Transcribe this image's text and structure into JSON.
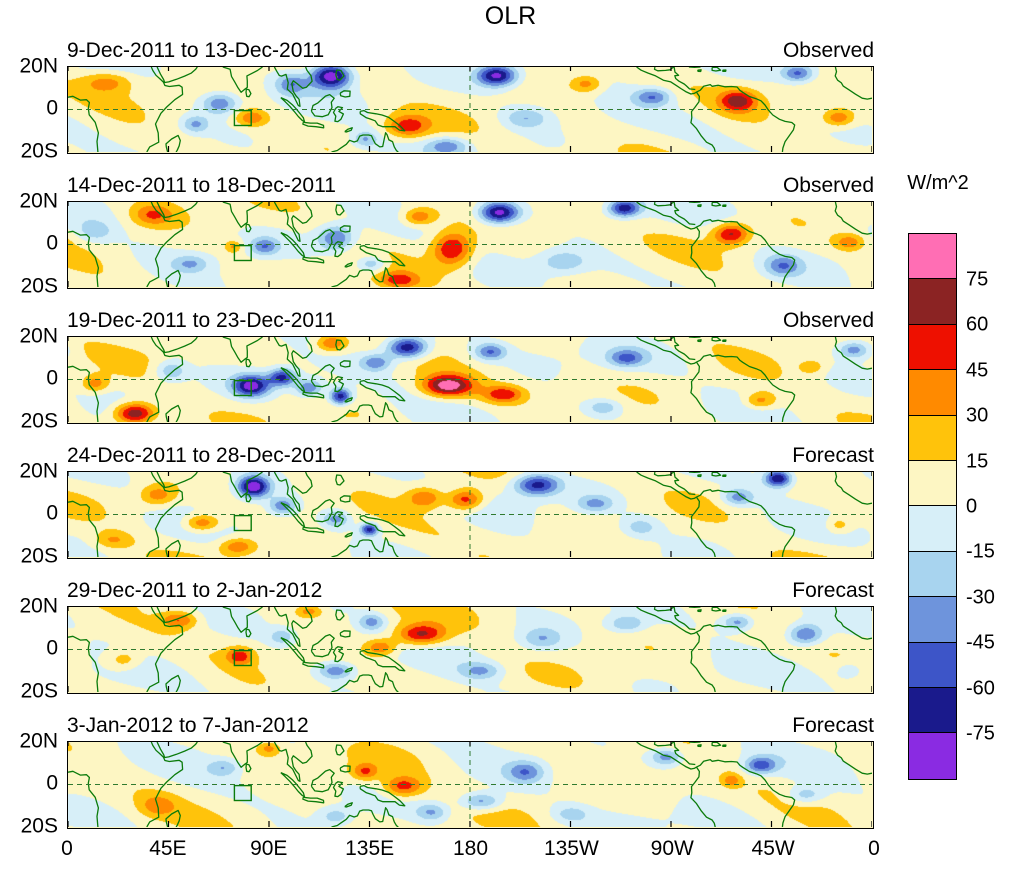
{
  "chart_data": {
    "type": "heatmap",
    "title": "OLR",
    "units": "W/m^2",
    "x_ticks": [
      "0",
      "45E",
      "90E",
      "135E",
      "180",
      "135W",
      "90W",
      "45W",
      "0"
    ],
    "y_ticks": [
      "20N",
      "0",
      "20S"
    ],
    "lon_range": [
      0,
      360
    ],
    "lat_range": [
      -20,
      20
    ],
    "levels": [
      -75,
      -60,
      -45,
      -30,
      -15,
      0,
      15,
      30,
      45,
      60,
      75
    ],
    "colorbar_tick_labels": [
      "75",
      "60",
      "45",
      "30",
      "15",
      "0",
      "-15",
      "-30",
      "-45",
      "-60",
      "-75"
    ],
    "colors_low_to_high": [
      "#8A2BE2",
      "#1A1A8C",
      "#3D55C8",
      "#6E94DC",
      "#A8D4EF",
      "#D7EFF8",
      "#FDF6C3",
      "#FFC30B",
      "#FF8A00",
      "#EE1000",
      "#8B2323",
      "#FF6EB4"
    ],
    "coastline_color": "#0B7B0B",
    "grid_color": "#2F7A2F",
    "monitor_box": {
      "lon_min": 74.5,
      "lon_max": 82,
      "lat_min": -7.5,
      "lat_max": -0.5
    },
    "feature_format": "[lon_deg_east, lat_deg_north, peak_anomaly_Wm2, radius_lon_deg, radius_lat_deg] approximate anomaly centers read from figure",
    "panels": [
      {
        "label": "9-Dec-2011 to 13-Dec-2011",
        "source": "Observed",
        "features": [
          [
            118,
            16,
            -95,
            9,
            6
          ],
          [
            100,
            12,
            -40,
            7,
            5
          ],
          [
            68,
            3,
            -48,
            8,
            5
          ],
          [
            57,
            -7,
            -35,
            6,
            4
          ],
          [
            82,
            -4,
            38,
            7,
            4
          ],
          [
            18,
            13,
            32,
            11,
            5
          ],
          [
            152,
            -8,
            46,
            9,
            5
          ],
          [
            170,
            -17,
            -42,
            9,
            4
          ],
          [
            133,
            -14,
            -35,
            6,
            4
          ],
          [
            192,
            16,
            -88,
            9,
            5
          ],
          [
            205,
            -4,
            -32,
            10,
            5
          ],
          [
            232,
            12,
            34,
            7,
            4
          ],
          [
            262,
            6,
            -45,
            8,
            4
          ],
          [
            300,
            4,
            56,
            8,
            5
          ],
          [
            327,
            17,
            -52,
            7,
            4
          ],
          [
            345,
            -4,
            40,
            7,
            4
          ]
        ]
      },
      {
        "label": "14-Dec-2011 to 18-Dec-2011",
        "source": "Observed",
        "features": [
          [
            193,
            15,
            -92,
            9,
            5
          ],
          [
            249,
            17,
            -75,
            7,
            4
          ],
          [
            172,
            -2,
            62,
            9,
            8
          ],
          [
            157,
            13,
            40,
            7,
            4
          ],
          [
            148,
            -17,
            42,
            9,
            4
          ],
          [
            120,
            3,
            -52,
            8,
            6
          ],
          [
            136,
            -9,
            -40,
            7,
            4
          ],
          [
            88,
            -1,
            -42,
            6,
            4
          ],
          [
            74,
            -1,
            30,
            4,
            3
          ],
          [
            55,
            -9,
            -30,
            8,
            4
          ],
          [
            38,
            14,
            36,
            9,
            5
          ],
          [
            12,
            6,
            -25,
            8,
            5
          ],
          [
            222,
            -8,
            -30,
            10,
            5
          ],
          [
            297,
            5,
            60,
            8,
            5
          ],
          [
            320,
            -10,
            -42,
            8,
            5
          ],
          [
            350,
            1,
            36,
            7,
            4
          ]
        ]
      },
      {
        "label": "19-Dec-2011 to 23-Dec-2011",
        "source": "Observed",
        "features": [
          [
            30,
            -16,
            78,
            9,
            5
          ],
          [
            12,
            -2,
            36,
            6,
            4
          ],
          [
            46,
            4,
            -35,
            7,
            5
          ],
          [
            82,
            -3,
            -82,
            8,
            5
          ],
          [
            96,
            1,
            -68,
            6,
            4
          ],
          [
            108,
            -4,
            -50,
            6,
            4
          ],
          [
            122,
            -8,
            -78,
            5,
            4
          ],
          [
            118,
            17,
            45,
            7,
            4
          ],
          [
            138,
            8,
            -45,
            7,
            4
          ],
          [
            152,
            15,
            -85,
            9,
            5
          ],
          [
            170,
            -3,
            78,
            11,
            5
          ],
          [
            195,
            -7,
            48,
            9,
            4
          ],
          [
            189,
            13,
            -48,
            7,
            4
          ],
          [
            240,
            -13,
            -30,
            8,
            4
          ],
          [
            250,
            10,
            -46,
            8,
            4
          ],
          [
            310,
            -10,
            36,
            7,
            4
          ],
          [
            333,
            6,
            26,
            5,
            3
          ],
          [
            352,
            14,
            -46,
            7,
            4
          ]
        ]
      },
      {
        "label": "24-Dec-2011 to 28-Dec-2011",
        "source": "Forecast",
        "features": [
          [
            83,
            13,
            -92,
            7,
            5
          ],
          [
            96,
            4,
            -45,
            6,
            4
          ],
          [
            120,
            -2,
            -42,
            6,
            4
          ],
          [
            135,
            -7,
            -72,
            4,
            3
          ],
          [
            60,
            -4,
            46,
            8,
            4
          ],
          [
            76,
            -15,
            40,
            8,
            4
          ],
          [
            40,
            9,
            36,
            8,
            5
          ],
          [
            20,
            -12,
            26,
            8,
            4
          ],
          [
            160,
            8,
            42,
            8,
            5
          ],
          [
            178,
            7,
            56,
            8,
            5
          ],
          [
            210,
            14,
            -72,
            10,
            5
          ],
          [
            236,
            5,
            -36,
            8,
            4
          ],
          [
            256,
            -6,
            -28,
            9,
            5
          ],
          [
            300,
            8,
            -42,
            7,
            4
          ],
          [
            318,
            17,
            -82,
            6,
            4
          ],
          [
            345,
            -5,
            26,
            6,
            4
          ]
        ]
      },
      {
        "label": "29-Dec-2011 to 2-Jan-2012",
        "source": "Forecast",
        "features": [
          [
            158,
            7,
            62,
            11,
            5
          ],
          [
            140,
            1,
            40,
            7,
            4
          ],
          [
            77,
            -3,
            46,
            6,
            4
          ],
          [
            50,
            14,
            40,
            8,
            4
          ],
          [
            108,
            18,
            34,
            6,
            3
          ],
          [
            96,
            6,
            -30,
            6,
            4
          ],
          [
            120,
            -10,
            -46,
            8,
            4
          ],
          [
            136,
            13,
            -40,
            6,
            4
          ],
          [
            185,
            -10,
            -34,
            9,
            4
          ],
          [
            212,
            5,
            -30,
            9,
            5
          ],
          [
            250,
            12,
            -36,
            8,
            4
          ],
          [
            300,
            13,
            -44,
            7,
            4
          ],
          [
            330,
            7,
            -55,
            8,
            5
          ],
          [
            25,
            -5,
            28,
            8,
            5
          ],
          [
            350,
            -10,
            -25,
            6,
            4
          ]
        ]
      },
      {
        "label": "3-Jan-2012 to 7-Jan-2012",
        "source": "Forecast",
        "features": [
          [
            150,
            -1,
            50,
            9,
            5
          ],
          [
            133,
            6,
            40,
            6,
            4
          ],
          [
            163,
            -13,
            -34,
            7,
            4
          ],
          [
            185,
            -8,
            -46,
            9,
            4
          ],
          [
            205,
            6,
            -42,
            8,
            5
          ],
          [
            268,
            13,
            -44,
            7,
            4
          ],
          [
            310,
            9,
            -56,
            7,
            4
          ],
          [
            330,
            -5,
            -32,
            8,
            4
          ],
          [
            297,
            2,
            30,
            4,
            3
          ],
          [
            90,
            17,
            30,
            5,
            3
          ],
          [
            70,
            8,
            -30,
            7,
            4
          ],
          [
            40,
            -10,
            26,
            8,
            5
          ],
          [
            120,
            -15,
            -28,
            7,
            4
          ],
          [
            225,
            -14,
            -24,
            8,
            4
          ]
        ]
      }
    ]
  }
}
